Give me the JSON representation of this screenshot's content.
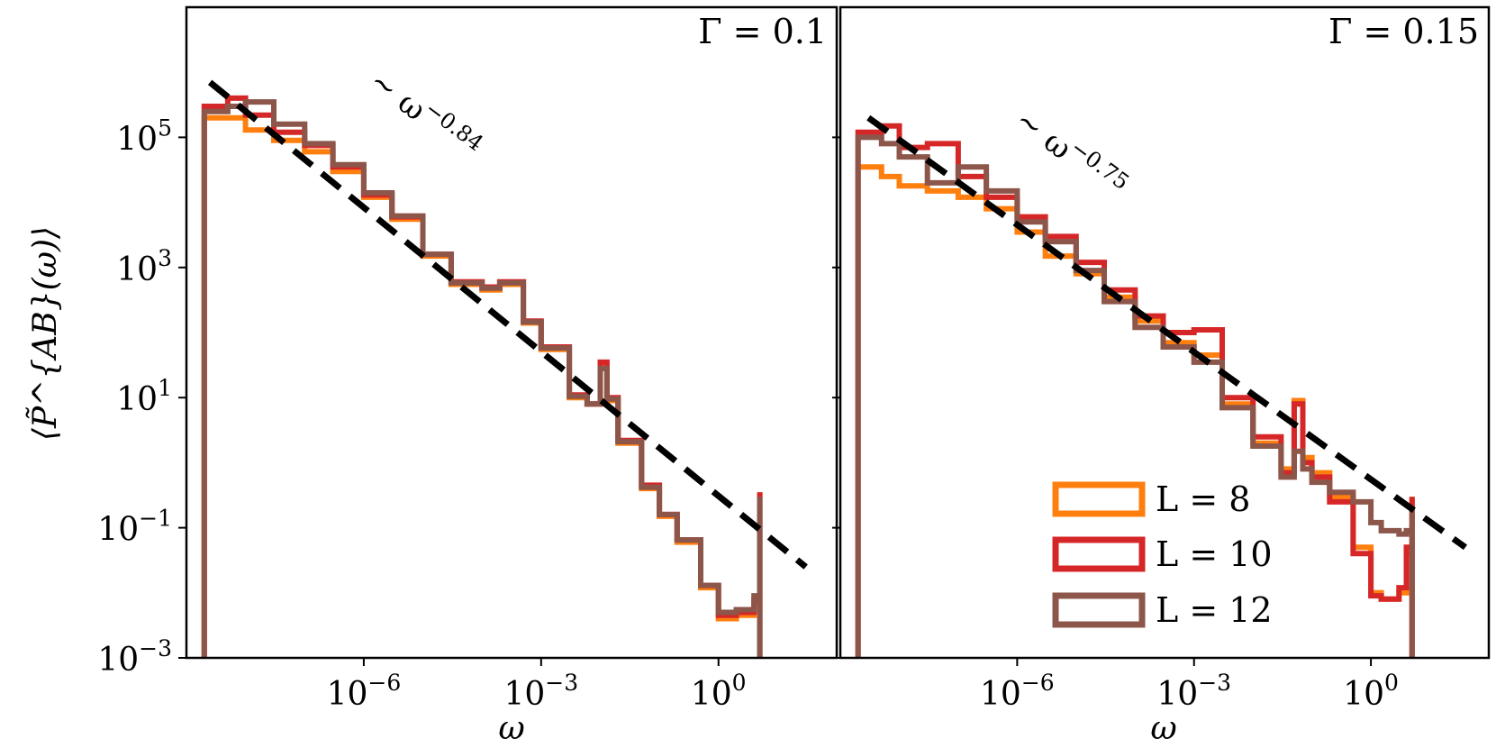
{
  "chart_data": {
    "type": "line",
    "ylabel": "⟨P̃^{AB}(ω)⟩",
    "xlabel": "ω",
    "xscale": "log",
    "yscale": "log",
    "xlim": [
      1e-09,
      100
    ],
    "ylim": [
      0.001,
      10000000
    ],
    "x_ticks": [
      {
        "value": 1e-06,
        "base": "10",
        "exp": "−6"
      },
      {
        "value": 0.001,
        "base": "10",
        "exp": "−3"
      },
      {
        "value": 1,
        "base": "10",
        "exp": "0"
      }
    ],
    "y_ticks": [
      {
        "value": 100000,
        "base": "10",
        "exp": "5"
      },
      {
        "value": 1000,
        "base": "10",
        "exp": "3"
      },
      {
        "value": 10,
        "base": "10",
        "exp": "1"
      },
      {
        "value": 0.1,
        "base": "10",
        "exp": "−1"
      },
      {
        "value": 0.001,
        "base": "10",
        "exp": "−3"
      }
    ],
    "grid": false,
    "legend": {
      "placement": "lower-right of right panel",
      "entries": [
        {
          "label": "L = 8",
          "color": "#ff7f0e"
        },
        {
          "label": "L = 10",
          "color": "#d62728"
        },
        {
          "label": "L = 12",
          "color": "#8c564b"
        }
      ]
    },
    "panels": [
      {
        "title": "Γ = 0.1",
        "fit": {
          "annotation": "∼ ω",
          "exponent": "−0.84",
          "slope": -0.84,
          "x": [
            2.5e-09,
            30
          ],
          "y": [
            700000,
            0.025
          ]
        },
        "series": [
          {
            "name": "L = 8",
            "color": "#ff7f0e",
            "x": [
              2e-09,
              5e-09,
              1e-08,
              3e-08,
              1e-07,
              3e-07,
              1e-06,
              3e-06,
              1e-05,
              3e-05,
              0.0001,
              0.0002,
              0.0005,
              0.001,
              0.003,
              0.006,
              0.01,
              0.013,
              0.02,
              0.05,
              0.1,
              0.2,
              0.5,
              1,
              2,
              4,
              5
            ],
            "y": [
              200000,
              200000,
              130000,
              90000,
              60000,
              30000,
              12000,
              5500,
              1500,
              550,
              450,
              550,
              140,
              55,
              10,
              8,
              30,
              9,
              2,
              0.4,
              0.15,
              0.06,
              0.012,
              0.004,
              0.0045,
              0.007,
              0.35
            ]
          },
          {
            "name": "L = 10",
            "color": "#d62728",
            "x": [
              2e-09,
              5e-09,
              1e-08,
              3e-08,
              1e-07,
              3e-07,
              1e-06,
              3e-06,
              1e-05,
              3e-05,
              0.0001,
              0.0002,
              0.0005,
              0.001,
              0.003,
              0.006,
              0.01,
              0.013,
              0.02,
              0.05,
              0.1,
              0.2,
              0.5,
              1,
              2,
              4,
              5
            ],
            "y": [
              300000,
              400000,
              220000,
              120000,
              75000,
              35000,
              13000,
              6000,
              1600,
              600,
              500,
              600,
              150,
              60,
              11,
              8,
              35,
              10,
              2.2,
              0.45,
              0.16,
              0.065,
              0.013,
              0.0045,
              0.005,
              0.008,
              0.35
            ]
          },
          {
            "name": "L = 12",
            "color": "#8c564b",
            "x": [
              2e-09,
              5e-09,
              1e-08,
              3e-08,
              1e-07,
              3e-07,
              1e-06,
              3e-06,
              1e-05,
              3e-05,
              0.0001,
              0.0002,
              0.0005,
              0.001,
              0.003,
              0.006,
              0.01,
              0.013,
              0.02,
              0.05,
              0.1,
              0.2,
              0.5,
              1,
              2,
              4,
              5
            ],
            "y": [
              250000,
              300000,
              350000,
              160000,
              80000,
              38000,
              14000,
              6200,
              1600,
              580,
              480,
              580,
              145,
              58,
              10.5,
              8,
              28,
              9.5,
              2.1,
              0.42,
              0.16,
              0.065,
              0.013,
              0.005,
              0.0055,
              0.009,
              0.3
            ]
          }
        ]
      },
      {
        "title": "Γ = 0.15",
        "fit": {
          "annotation": "∼ ω",
          "exponent": "−0.75",
          "slope": -0.75,
          "x": [
            3e-09,
            40
          ],
          "y": [
            200000,
            0.05
          ]
        },
        "series": [
          {
            "name": "L = 8",
            "color": "#ff7f0e",
            "x": [
              2e-09,
              5e-09,
              1e-08,
              3e-08,
              1e-07,
              3e-07,
              1e-06,
              3e-06,
              1e-05,
              3e-05,
              0.0001,
              0.0003,
              0.001,
              0.003,
              0.01,
              0.03,
              0.05,
              0.07,
              0.1,
              0.2,
              0.5,
              1,
              1.5,
              3,
              4,
              5
            ],
            "y": [
              35000,
              25000,
              18000,
              15000,
              12000,
              8000,
              3500,
              1500,
              800,
              350,
              150,
              70,
              45,
              8,
              2,
              0.8,
              9,
              1.2,
              0.7,
              0.3,
              0.05,
              0.01,
              0.008,
              0.01,
              0.04,
              0.3
            ]
          },
          {
            "name": "L = 10",
            "color": "#d62728",
            "x": [
              2e-09,
              5e-09,
              1e-08,
              3e-08,
              1e-07,
              3e-07,
              1e-06,
              3e-06,
              1e-05,
              3e-05,
              0.0001,
              0.0003,
              0.001,
              0.003,
              0.01,
              0.03,
              0.05,
              0.07,
              0.1,
              0.2,
              0.5,
              1,
              1.5,
              3,
              4,
              5
            ],
            "y": [
              120000,
              150000,
              70000,
              80000,
              25000,
              12000,
              6000,
              3000,
              1200,
              450,
              180,
              100,
              110,
              10,
              2.5,
              0.7,
              8,
              1.0,
              0.6,
              0.25,
              0.04,
              0.009,
              0.008,
              0.012,
              0.05,
              0.3
            ]
          },
          {
            "name": "L = 12",
            "color": "#8c564b",
            "x": [
              2e-09,
              5e-09,
              1e-08,
              3e-08,
              1e-07,
              3e-07,
              1e-06,
              3e-06,
              1e-05,
              3e-05,
              0.0001,
              0.0003,
              0.001,
              0.003,
              0.01,
              0.03,
              0.05,
              0.07,
              0.1,
              0.2,
              0.5,
              1,
              1.5,
              3,
              4,
              5
            ],
            "y": [
              100000,
              80000,
              50000,
              20000,
              35000,
              15000,
              5000,
              2500,
              900,
              300,
              120,
              60,
              35,
              7,
              1.8,
              0.6,
              1.5,
              0.8,
              0.5,
              0.35,
              0.25,
              0.12,
              0.09,
              0.08,
              0.09,
              0.2
            ]
          }
        ]
      }
    ]
  }
}
